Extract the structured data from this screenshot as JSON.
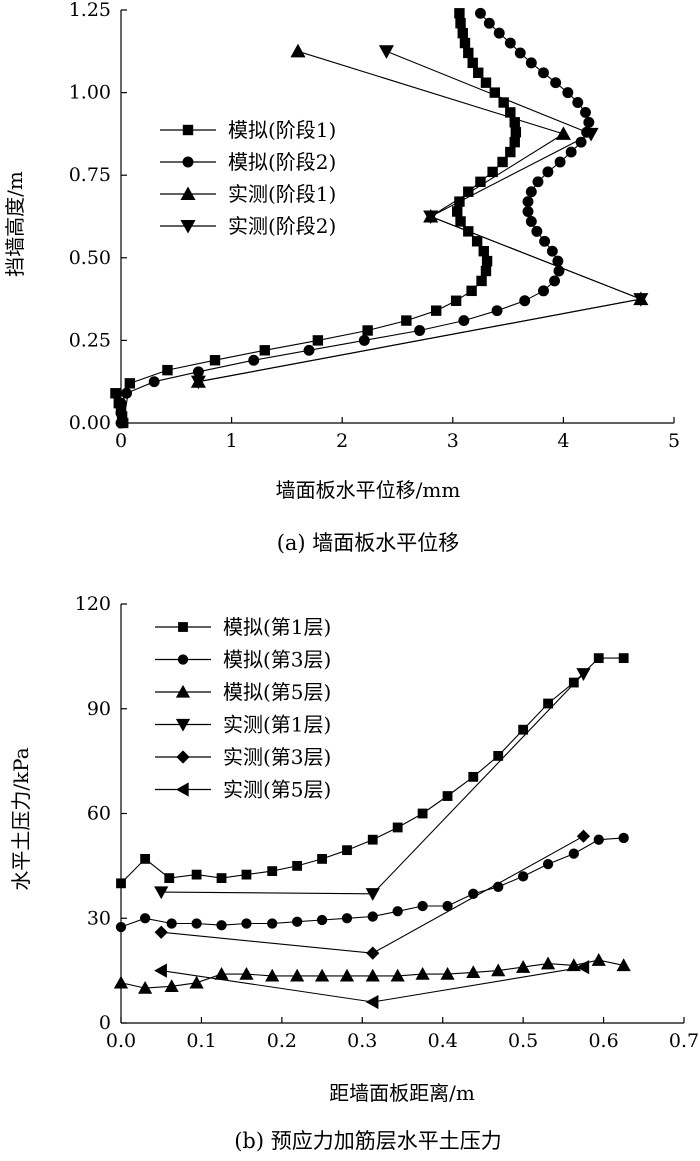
{
  "chart_data": [
    {
      "type": "line",
      "caption": "(a) 墙面板水平位移",
      "xlabel": "墙面板水平位移/mm",
      "ylabel": "挡墙高度/m",
      "xlim": [
        0,
        5
      ],
      "ylim": [
        0,
        1.25
      ],
      "xticks": [
        0,
        1,
        2,
        3,
        4,
        5
      ],
      "yticks": [
        0,
        0.25,
        0.5,
        0.75,
        1.0,
        1.25
      ],
      "ytick_labels": [
        "0.00",
        "0.25",
        "0.50",
        "0.75",
        "1.00",
        "1.25"
      ],
      "grid": false,
      "legend_position": "upper-left",
      "series": [
        {
          "name": "模拟(阶段1)",
          "marker": "square",
          "points": [
            [
              -0.05,
              0.09
            ],
            [
              -0.02,
              0.06
            ],
            [
              0.0,
              0.04
            ],
            [
              0.01,
              0.02
            ],
            [
              0.02,
              0.0
            ],
            [
              0.08,
              0.12
            ],
            [
              0.42,
              0.16
            ],
            [
              0.85,
              0.19
            ],
            [
              1.3,
              0.22
            ],
            [
              1.78,
              0.25
            ],
            [
              2.23,
              0.28
            ],
            [
              2.58,
              0.31
            ],
            [
              2.85,
              0.34
            ],
            [
              3.03,
              0.37
            ],
            [
              3.17,
              0.4
            ],
            [
              3.26,
              0.43
            ],
            [
              3.3,
              0.46
            ],
            [
              3.31,
              0.49
            ],
            [
              3.28,
              0.52
            ],
            [
              3.22,
              0.55
            ],
            [
              3.14,
              0.58
            ],
            [
              3.07,
              0.61
            ],
            [
              3.04,
              0.64
            ],
            [
              3.06,
              0.67
            ],
            [
              3.14,
              0.7
            ],
            [
              3.25,
              0.73
            ],
            [
              3.36,
              0.76
            ],
            [
              3.45,
              0.79
            ],
            [
              3.52,
              0.82
            ],
            [
              3.56,
              0.85
            ],
            [
              3.57,
              0.88
            ],
            [
              3.56,
              0.91
            ],
            [
              3.52,
              0.94
            ],
            [
              3.46,
              0.97
            ],
            [
              3.38,
              1.0
            ],
            [
              3.3,
              1.03
            ],
            [
              3.23,
              1.06
            ],
            [
              3.18,
              1.09
            ],
            [
              3.14,
              1.12
            ],
            [
              3.11,
              1.15
            ],
            [
              3.09,
              1.18
            ],
            [
              3.07,
              1.21
            ],
            [
              3.06,
              1.24
            ]
          ]
        },
        {
          "name": "模拟(阶段2)",
          "marker": "circle",
          "points": [
            [
              0.0,
              0.0
            ],
            [
              0.0,
              0.03
            ],
            [
              0.0,
              0.06
            ],
            [
              0.05,
              0.09
            ],
            [
              0.3,
              0.125
            ],
            [
              0.7,
              0.155
            ],
            [
              1.2,
              0.19
            ],
            [
              1.7,
              0.22
            ],
            [
              2.2,
              0.25
            ],
            [
              2.7,
              0.28
            ],
            [
              3.1,
              0.31
            ],
            [
              3.4,
              0.34
            ],
            [
              3.65,
              0.37
            ],
            [
              3.82,
              0.4
            ],
            [
              3.92,
              0.43
            ],
            [
              3.96,
              0.46
            ],
            [
              3.95,
              0.49
            ],
            [
              3.9,
              0.52
            ],
            [
              3.83,
              0.55
            ],
            [
              3.76,
              0.58
            ],
            [
              3.71,
              0.61
            ],
            [
              3.68,
              0.64
            ],
            [
              3.68,
              0.67
            ],
            [
              3.71,
              0.7
            ],
            [
              3.77,
              0.73
            ],
            [
              3.86,
              0.76
            ],
            [
              3.97,
              0.79
            ],
            [
              4.07,
              0.82
            ],
            [
              4.16,
              0.85
            ],
            [
              4.21,
              0.88
            ],
            [
              4.23,
              0.91
            ],
            [
              4.2,
              0.94
            ],
            [
              4.13,
              0.97
            ],
            [
              4.04,
              1.0
            ],
            [
              3.93,
              1.03
            ],
            [
              3.82,
              1.06
            ],
            [
              3.71,
              1.09
            ],
            [
              3.61,
              1.12
            ],
            [
              3.52,
              1.15
            ],
            [
              3.42,
              1.18
            ],
            [
              3.33,
              1.21
            ],
            [
              3.25,
              1.24
            ]
          ]
        },
        {
          "name": "实测(阶段1)",
          "marker": "triangle-up",
          "points": [
            [
              1.6,
              1.125
            ],
            [
              4.0,
              0.875
            ],
            [
              2.8,
              0.625
            ],
            [
              4.7,
              0.375
            ],
            [
              0.7,
              0.125
            ]
          ]
        },
        {
          "name": "实测(阶段2)",
          "marker": "triangle-down",
          "points": [
            [
              2.4,
              1.125
            ],
            [
              4.25,
              0.875
            ],
            [
              2.8,
              0.625
            ],
            [
              4.7,
              0.375
            ],
            [
              0.7,
              0.125
            ]
          ]
        }
      ]
    },
    {
      "type": "line",
      "caption": "(b) 预应力加筋层水平土压力",
      "xlabel": "距墙面板距离/m",
      "ylabel": "水平土压力/kPa",
      "xlim": [
        0,
        0.7
      ],
      "ylim": [
        0,
        120
      ],
      "xticks": [
        0,
        0.1,
        0.2,
        0.3,
        0.4,
        0.5,
        0.6,
        0.7
      ],
      "xtick_labels": [
        "0.0",
        "0.1",
        "0.2",
        "0.3",
        "0.4",
        "0.5",
        "0.6",
        "0.7"
      ],
      "yticks": [
        0,
        30,
        60,
        90,
        120
      ],
      "ytick_labels": [
        "0",
        "30",
        "60",
        "90",
        "120"
      ],
      "grid": false,
      "legend_position": "upper-left",
      "series": [
        {
          "name": "模拟(第1层)",
          "marker": "square",
          "points": [
            [
              0.0,
              40
            ],
            [
              0.03,
              47
            ],
            [
              0.06,
              41.5
            ],
            [
              0.094,
              42.5
            ],
            [
              0.125,
              41.5
            ],
            [
              0.156,
              42.5
            ],
            [
              0.188,
              43.5
            ],
            [
              0.219,
              45
            ],
            [
              0.25,
              47
            ],
            [
              0.281,
              49.5
            ],
            [
              0.313,
              52.5
            ],
            [
              0.344,
              56
            ],
            [
              0.375,
              60
            ],
            [
              0.406,
              65
            ],
            [
              0.438,
              70.5
            ],
            [
              0.469,
              76.5
            ],
            [
              0.5,
              84
            ],
            [
              0.531,
              91.5
            ],
            [
              0.563,
              97.5
            ],
            [
              0.594,
              104.5
            ],
            [
              0.625,
              104.5
            ]
          ]
        },
        {
          "name": "模拟(第3层)",
          "marker": "circle",
          "points": [
            [
              0.0,
              27.5
            ],
            [
              0.03,
              30
            ],
            [
              0.063,
              28.5
            ],
            [
              0.094,
              28.5
            ],
            [
              0.125,
              28
            ],
            [
              0.156,
              28.5
            ],
            [
              0.188,
              28.5
            ],
            [
              0.219,
              29
            ],
            [
              0.25,
              29.5
            ],
            [
              0.281,
              30
            ],
            [
              0.313,
              30.5
            ],
            [
              0.344,
              32
            ],
            [
              0.375,
              33.5
            ],
            [
              0.406,
              33.5
            ],
            [
              0.438,
              37
            ],
            [
              0.469,
              39
            ],
            [
              0.5,
              42
            ],
            [
              0.531,
              45.5
            ],
            [
              0.563,
              48.5
            ],
            [
              0.594,
              52.5
            ],
            [
              0.625,
              53
            ]
          ]
        },
        {
          "name": "模拟(第5层)",
          "marker": "triangle-up",
          "points": [
            [
              0.0,
              11.5
            ],
            [
              0.03,
              10
            ],
            [
              0.063,
              10.5
            ],
            [
              0.094,
              11.5
            ],
            [
              0.125,
              14
            ],
            [
              0.156,
              14
            ],
            [
              0.188,
              13.5
            ],
            [
              0.219,
              13.5
            ],
            [
              0.25,
              13.5
            ],
            [
              0.281,
              13.5
            ],
            [
              0.313,
              13.5
            ],
            [
              0.344,
              13.5
            ],
            [
              0.375,
              14
            ],
            [
              0.406,
              14
            ],
            [
              0.438,
              14.5
            ],
            [
              0.469,
              15
            ],
            [
              0.5,
              16
            ],
            [
              0.531,
              17
            ],
            [
              0.563,
              16.5
            ],
            [
              0.594,
              18
            ],
            [
              0.625,
              16.5
            ]
          ]
        },
        {
          "name": "实测(第1层)",
          "marker": "triangle-down",
          "points": [
            [
              0.05,
              37.5
            ],
            [
              0.313,
              37
            ],
            [
              0.575,
              100
            ]
          ]
        },
        {
          "name": "实测(第3层)",
          "marker": "diamond",
          "points": [
            [
              0.05,
              26
            ],
            [
              0.313,
              20
            ],
            [
              0.575,
              53.5
            ]
          ]
        },
        {
          "name": "实测(第5层)",
          "marker": "triangle-left",
          "points": [
            [
              0.05,
              15
            ],
            [
              0.313,
              6
            ],
            [
              0.575,
              16
            ]
          ]
        }
      ]
    }
  ]
}
